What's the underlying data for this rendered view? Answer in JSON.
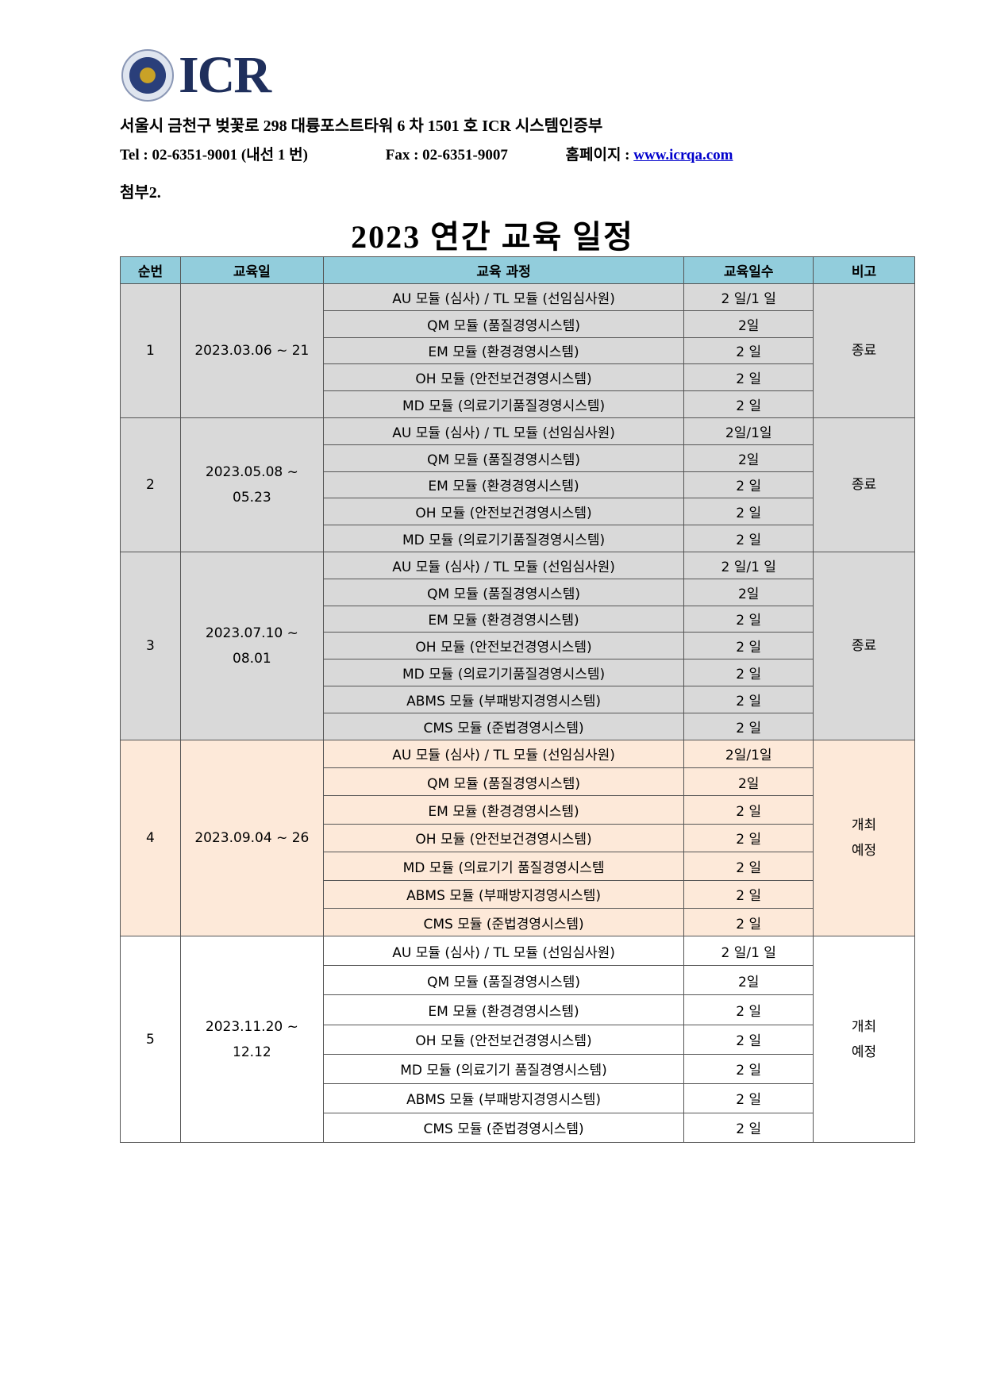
{
  "header": {
    "logo_text": "ICR",
    "address": "서울시 금천구 벚꽃로 298 대륭포스트타워 6 차 1501 호 ICR 시스템인증부",
    "tel": "Tel : 02-6351-9001 (내선 1 번)",
    "fax": "Fax : 02-6351-9007",
    "homepage_label": "홈페이지 :",
    "homepage_link": "www.icrqa.com",
    "attachment": "첨부2."
  },
  "title": "2023 연간 교육 일정",
  "colors": {
    "header_bg": "#92CDDC",
    "done_bg": "#D9D9D9",
    "planned_bg": "#FDE9D9"
  },
  "table": {
    "columns": [
      "순번",
      "교육일",
      "교육 과정",
      "교육일수",
      "비고"
    ],
    "groups": [
      {
        "no": "1",
        "dates": [
          "2023.03.06 ~ 21"
        ],
        "status": [
          "종료"
        ],
        "courses": [
          [
            "AU 모듈 (심사) / TL 모듈 (선임심사원)",
            "2 일/1 일"
          ],
          [
            "QM 모듈 (품질경영시스템)",
            "2일"
          ],
          [
            "EM 모듈 (환경경영시스템)",
            "2 일"
          ],
          [
            "OH 모듈 (안전보건경영시스템)",
            "2 일"
          ],
          [
            "MD 모듈 (의료기기품질경영시스템)",
            "2 일"
          ]
        ]
      },
      {
        "no": "2",
        "dates": [
          "2023.05.08 ~",
          "05.23"
        ],
        "status": [
          "종료"
        ],
        "courses": [
          [
            "AU 모듈 (심사) / TL 모듈 (선임심사원)",
            "2일/1일"
          ],
          [
            "QM 모듈 (품질경영시스템)",
            "2일"
          ],
          [
            "EM 모듈 (환경경영시스템)",
            "2 일"
          ],
          [
            "OH 모듈 (안전보건경영시스템)",
            "2 일"
          ],
          [
            "MD 모듈 (의료기기품질경영시스템)",
            "2 일"
          ]
        ]
      },
      {
        "no": "3",
        "dates": [
          "2023.07.10 ~",
          "08.01"
        ],
        "status": [
          "종료"
        ],
        "courses": [
          [
            "AU 모듈 (심사) / TL 모듈 (선임심사원)",
            "2 일/1 일"
          ],
          [
            "QM 모듈 (품질경영시스템)",
            "2일"
          ],
          [
            "EM 모듈 (환경경영시스템)",
            "2 일"
          ],
          [
            "OH 모듈 (안전보건경영시스템)",
            "2 일"
          ],
          [
            "MD 모듈 (의료기기품질경영시스템)",
            "2 일"
          ],
          [
            "ABMS 모듈 (부패방지경영시스템)",
            "2 일"
          ],
          [
            "CMS 모듈 (준법경영시스템)",
            "2 일"
          ]
        ]
      },
      {
        "no": "4",
        "dates": [
          "2023.09.04 ~ 26"
        ],
        "status": [
          "개최",
          "예정"
        ],
        "courses": [
          [
            "AU 모듈 (심사) / TL 모듈 (선임심사원)",
            "2일/1일"
          ],
          [
            "QM 모듈 (품질경영시스템)",
            "2일"
          ],
          [
            "EM 모듈 (환경경영시스템)",
            "2 일"
          ],
          [
            "OH 모듈 (안전보건경영시스템)",
            "2 일"
          ],
          [
            "MD 모듈 (의료기기 품질경영시스템",
            "2 일"
          ],
          [
            "ABMS 모듈 (부패방지경영시스템)",
            "2 일"
          ],
          [
            "CMS 모듈 (준법경영시스템)",
            "2 일"
          ]
        ]
      },
      {
        "no": "5",
        "dates": [
          "2023.11.20 ~",
          "12.12"
        ],
        "status": [
          "개최",
          "예정"
        ],
        "courses": [
          [
            "AU 모듈 (심사) / TL 모듈 (선임심사원)",
            "2 일/1 일"
          ],
          [
            "QM 모듈 (품질경영시스템)",
            "2일"
          ],
          [
            "EM 모듈 (환경경영시스템)",
            "2 일"
          ],
          [
            "OH 모듈 (안전보건경영시스템)",
            "2 일"
          ],
          [
            "MD 모듈 (의료기기 품질경영시스템)",
            "2 일"
          ],
          [
            "ABMS 모듈 (부패방지경영시스템)",
            "2 일"
          ],
          [
            "CMS 모듈 (준법경영시스템)",
            "2 일"
          ]
        ]
      }
    ]
  }
}
